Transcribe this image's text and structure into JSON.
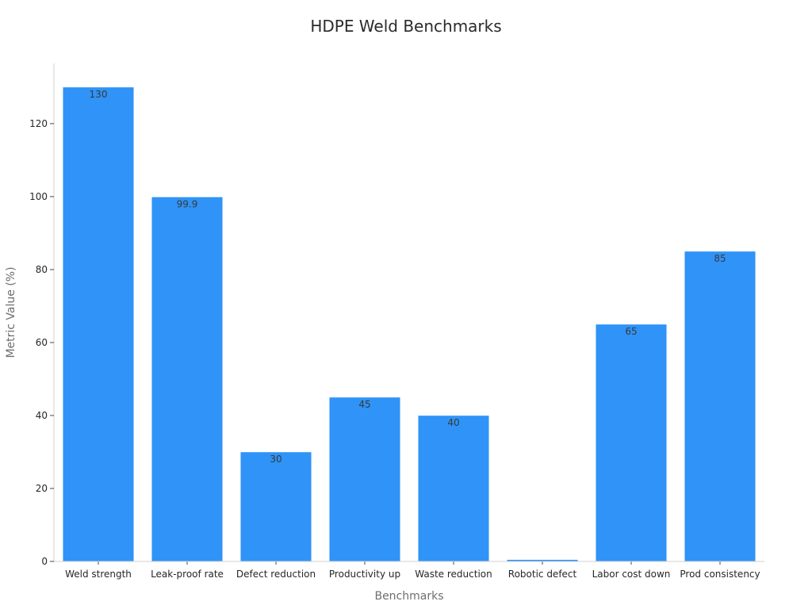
{
  "chart_data": {
    "type": "bar",
    "title": "HDPE Weld Benchmarks",
    "xlabel": "Benchmarks",
    "ylabel": "Metric Value (%)",
    "categories": [
      "Weld strength",
      "Leak-proof rate",
      "Defect reduction",
      "Productivity up",
      "Waste reduction",
      "Robotic defect",
      "Labor cost down",
      "Prod consistency"
    ],
    "values": [
      130,
      99.9,
      30,
      45,
      40,
      0.5,
      65,
      85
    ],
    "data_labels": [
      "130",
      "99.9",
      "30",
      "45",
      "40",
      "",
      "65",
      "85"
    ],
    "ylim": [
      0,
      136.5
    ],
    "yticks": [
      0,
      20,
      40,
      60,
      80,
      100,
      120
    ],
    "grid": false,
    "legend": "none",
    "bar_color": "#2f93f7"
  }
}
